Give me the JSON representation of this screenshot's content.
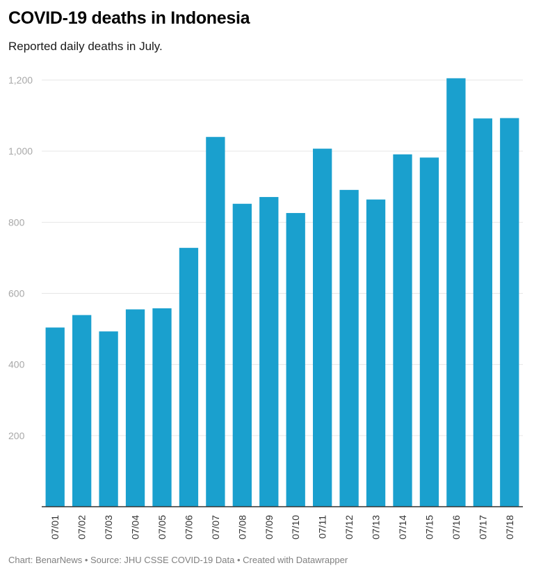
{
  "header": {
    "title": "COVID-19 deaths in Indonesia",
    "subtitle": "Reported daily deaths in July."
  },
  "footer": {
    "chart_by": "Chart: BenarNews",
    "sep1": " • ",
    "source": "Source: JHU CSSE COVID-19 Data",
    "sep2": " • ",
    "credit": "Created with Datawrapper"
  },
  "colors": {
    "bar": "#1aa0ce",
    "gridline": "#e6e6e6",
    "baseline": "#333333"
  },
  "chart_data": {
    "type": "bar",
    "title": "COVID-19 deaths in Indonesia",
    "subtitle": "Reported daily deaths in July.",
    "xlabel": "",
    "ylabel": "",
    "ylim": [
      0,
      1200
    ],
    "yticks": [
      200,
      400,
      600,
      800,
      1000,
      1200
    ],
    "ytick_labels": [
      "200",
      "400",
      "600",
      "800",
      "1,000",
      "1,200"
    ],
    "grid": true,
    "categories": [
      "07/01",
      "07/02",
      "07/03",
      "07/04",
      "07/05",
      "07/06",
      "07/07",
      "07/08",
      "07/09",
      "07/10",
      "07/11",
      "07/12",
      "07/13",
      "07/14",
      "07/15",
      "07/16",
      "07/17",
      "07/18"
    ],
    "values": [
      504,
      539,
      493,
      555,
      558,
      728,
      1040,
      852,
      871,
      826,
      1007,
      891,
      864,
      991,
      982,
      1205,
      1092,
      1093
    ]
  }
}
